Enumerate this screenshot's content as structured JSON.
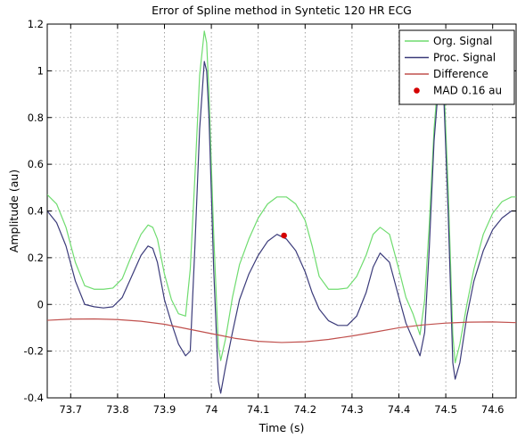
{
  "chart_data": {
    "type": "line",
    "title": "Error of Spline method in Syntetic 120 HR ECG",
    "xlabel": "Time (s)",
    "ylabel": "Amplitude (au)",
    "xlim": [
      73.65,
      74.65
    ],
    "ylim": [
      -0.4,
      1.2
    ],
    "xticks": [
      "73.7",
      "73.8",
      "73.9",
      "74",
      "74.1",
      "74.2",
      "74.3",
      "74.4",
      "74.5",
      "74.6"
    ],
    "yticks": [
      "-0.4",
      "-0.2",
      "0",
      "0.2",
      "0.4",
      "0.6",
      "0.8",
      "1",
      "1.2"
    ],
    "grid": true,
    "legend_position": "top-right",
    "series": [
      {
        "name": "Org. Signal",
        "color": "#6fdc6f",
        "x": [
          73.65,
          73.67,
          73.69,
          73.71,
          73.73,
          73.75,
          73.77,
          73.79,
          73.81,
          73.83,
          73.85,
          73.865,
          73.875,
          73.885,
          73.9,
          73.915,
          73.93,
          73.945,
          73.955,
          73.965,
          73.975,
          73.985,
          73.99,
          73.995,
          74.005,
          74.015,
          74.02,
          74.03,
          74.045,
          74.06,
          74.08,
          74.1,
          74.12,
          74.14,
          74.16,
          74.18,
          74.2,
          74.215,
          74.23,
          74.25,
          74.27,
          74.29,
          74.31,
          74.33,
          74.345,
          74.36,
          74.38,
          74.4,
          74.415,
          74.43,
          74.445,
          74.455,
          74.465,
          74.475,
          74.485,
          74.49,
          74.495,
          74.505,
          74.515,
          74.52,
          74.53,
          74.545,
          74.56,
          74.58,
          74.6,
          74.62,
          74.64,
          74.65
        ],
        "y": [
          0.47,
          0.43,
          0.33,
          0.18,
          0.08,
          0.065,
          0.065,
          0.07,
          0.11,
          0.21,
          0.3,
          0.34,
          0.33,
          0.28,
          0.13,
          0.02,
          -0.04,
          -0.05,
          0.15,
          0.55,
          0.98,
          1.17,
          1.12,
          0.9,
          0.3,
          -0.18,
          -0.24,
          -0.15,
          0.03,
          0.17,
          0.28,
          0.37,
          0.43,
          0.46,
          0.46,
          0.43,
          0.36,
          0.25,
          0.12,
          0.065,
          0.065,
          0.07,
          0.12,
          0.21,
          0.3,
          0.33,
          0.3,
          0.15,
          0.03,
          -0.04,
          -0.13,
          0.02,
          0.35,
          0.75,
          1.0,
          1.07,
          1.0,
          0.5,
          -0.13,
          -0.25,
          -0.17,
          0.0,
          0.15,
          0.3,
          0.39,
          0.44,
          0.46,
          0.46
        ]
      },
      {
        "name": "Proc. Signal",
        "color": "#3b3b7a",
        "x": [
          73.65,
          73.67,
          73.69,
          73.71,
          73.73,
          73.75,
          73.77,
          73.79,
          73.81,
          73.83,
          73.85,
          73.865,
          73.875,
          73.885,
          73.9,
          73.915,
          73.93,
          73.945,
          73.955,
          73.965,
          73.975,
          73.985,
          73.99,
          73.995,
          74.005,
          74.015,
          74.02,
          74.03,
          74.045,
          74.06,
          74.08,
          74.1,
          74.12,
          74.14,
          74.16,
          74.18,
          74.2,
          74.215,
          74.23,
          74.25,
          74.27,
          74.29,
          74.31,
          74.33,
          74.345,
          74.36,
          74.38,
          74.4,
          74.415,
          74.43,
          74.445,
          74.455,
          74.465,
          74.475,
          74.485,
          74.49,
          74.495,
          74.505,
          74.515,
          74.52,
          74.53,
          74.545,
          74.56,
          74.58,
          74.6,
          74.62,
          74.64,
          74.65
        ],
        "y": [
          0.4,
          0.35,
          0.25,
          0.1,
          0.0,
          -0.01,
          -0.015,
          -0.01,
          0.03,
          0.12,
          0.21,
          0.25,
          0.24,
          0.18,
          0.02,
          -0.08,
          -0.17,
          -0.22,
          -0.2,
          0.25,
          0.75,
          1.04,
          1.0,
          0.8,
          0.15,
          -0.33,
          -0.38,
          -0.27,
          -0.12,
          0.02,
          0.13,
          0.21,
          0.27,
          0.3,
          0.28,
          0.23,
          0.14,
          0.05,
          -0.02,
          -0.07,
          -0.09,
          -0.09,
          -0.05,
          0.05,
          0.16,
          0.22,
          0.18,
          0.03,
          -0.08,
          -0.15,
          -0.22,
          -0.12,
          0.25,
          0.7,
          0.95,
          1.0,
          0.93,
          0.4,
          -0.25,
          -0.32,
          -0.25,
          -0.05,
          0.1,
          0.23,
          0.32,
          0.37,
          0.4,
          0.4
        ]
      },
      {
        "name": "Difference",
        "color": "#c0504d",
        "x": [
          73.65,
          73.7,
          73.75,
          73.8,
          73.85,
          73.9,
          73.95,
          74.0,
          74.05,
          74.1,
          74.15,
          74.2,
          74.25,
          74.3,
          74.35,
          74.4,
          74.45,
          74.5,
          74.55,
          74.6,
          74.65
        ],
        "y": [
          -0.068,
          -0.063,
          -0.062,
          -0.065,
          -0.072,
          -0.085,
          -0.105,
          -0.125,
          -0.145,
          -0.158,
          -0.163,
          -0.16,
          -0.15,
          -0.135,
          -0.118,
          -0.1,
          -0.088,
          -0.08,
          -0.076,
          -0.075,
          -0.078
        ]
      }
    ],
    "markers": [
      {
        "name": "MAD 0.16 au",
        "color": "#d40000",
        "x": 74.155,
        "y": 0.295
      }
    ]
  }
}
